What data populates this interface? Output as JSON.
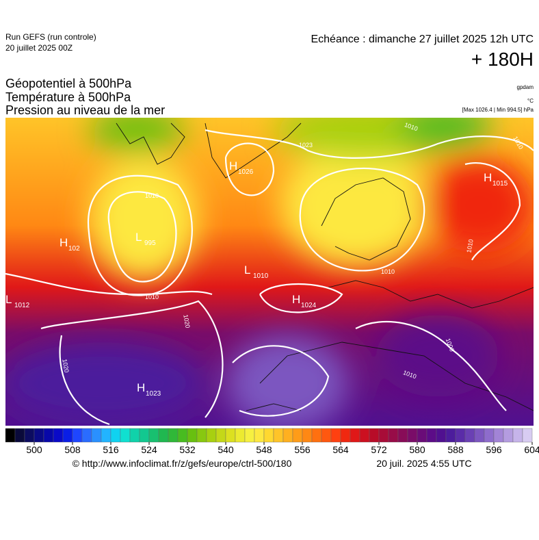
{
  "header": {
    "run": "Run GEFS (run controle)",
    "run_date": "20 juillet 2025 00Z",
    "echeance": "Echéance : dimanche 27 juillet 2025 12h UTC",
    "lead": "+ 180H"
  },
  "titles": [
    "Géopotentiel à 500hPa",
    "Température à 500hPa",
    "Pression au niveau de la mer"
  ],
  "units": {
    "geopotential": "gpdam",
    "temperature": "°C",
    "pressure": "[Max 1026.4 | Min 994.5] hPa"
  },
  "pressure_centers": [
    {
      "type": "H",
      "value": 1026
    },
    {
      "type": "H",
      "value": 1015
    },
    {
      "type": "L",
      "value": 995
    },
    {
      "type": "H",
      "value": 102
    },
    {
      "type": "L",
      "value": 1010
    },
    {
      "type": "L",
      "value": 1012
    },
    {
      "type": "H",
      "value": 1024
    },
    {
      "type": "H",
      "value": 1023
    }
  ],
  "isobar_labels": [
    1023,
    1010,
    1020,
    1020,
    1000,
    1010,
    1010,
    1010,
    1010,
    1010,
    1010
  ],
  "colorbar": {
    "lim": [
      494,
      604
    ],
    "step": 2,
    "ticks": [
      500,
      508,
      516,
      524,
      532,
      540,
      548,
      556,
      564,
      572,
      580,
      588,
      596,
      604
    ],
    "colors": [
      "#000000",
      "#0a0a3a",
      "#0c0c60",
      "#0a0a85",
      "#0808a8",
      "#0a0ac8",
      "#0a1ee6",
      "#1e46ff",
      "#2a6cff",
      "#2a90ff",
      "#22b4ff",
      "#10d2f0",
      "#10e0d0",
      "#10d2aa",
      "#12c890",
      "#18c070",
      "#20b850",
      "#30b838",
      "#48bc20",
      "#68c010",
      "#88c810",
      "#a8d010",
      "#c4d818",
      "#dce020",
      "#ecea30",
      "#f6f040",
      "#fde840",
      "#ffd830",
      "#ffc428",
      "#ffb020",
      "#ff9c18",
      "#ff8814",
      "#ff7010",
      "#ff5810",
      "#ff4010",
      "#f02810",
      "#e01818",
      "#cc1020",
      "#b80c28",
      "#a80c38",
      "#980c48",
      "#880c58",
      "#7a0c68",
      "#6a0c78",
      "#5c0c88",
      "#501090",
      "#4c1c9c",
      "#5a2ca8",
      "#6a40b4",
      "#7c56c0",
      "#8e6ccc",
      "#a284d6",
      "#b49ce0",
      "#c6b4ea",
      "#d8ccf2"
    ]
  },
  "footer": {
    "source": "© http://www.infoclimat.fr/z/gefs/europe/ctrl-500/180",
    "generated": "20 juil. 2025  4:55 UTC"
  }
}
